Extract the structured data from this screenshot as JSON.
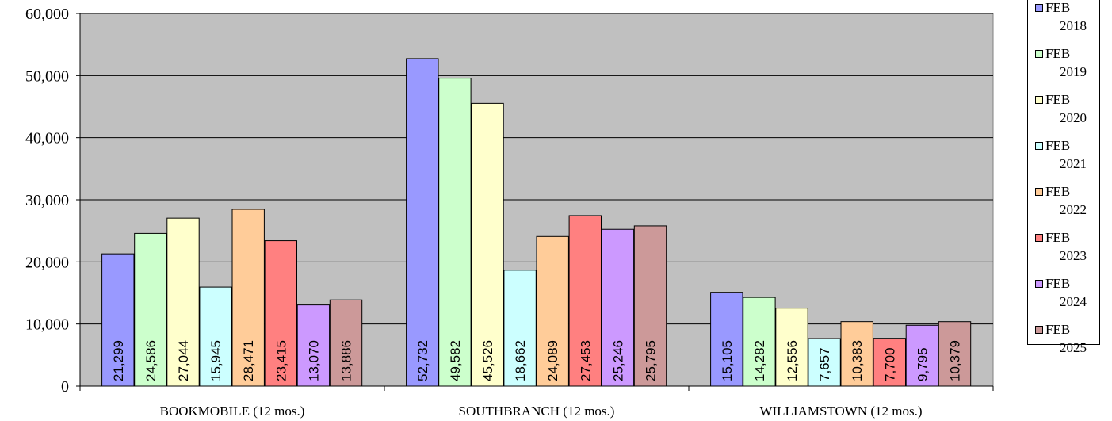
{
  "chart_data": {
    "type": "bar",
    "categories": [
      "BOOKMOBILE (12 mos.)",
      "SOUTHBRANCH (12 mos.)",
      "WILLIAMSTOWN (12 mos.)"
    ],
    "ylim": [
      0,
      60000
    ],
    "yticks": [
      "0",
      "10,000",
      "20,000",
      "30,000",
      "40,000",
      "50,000",
      "60,000"
    ],
    "grid": true,
    "legend_position": "right",
    "series": [
      {
        "name_line1": "FEB",
        "name_line2": "2018",
        "color": "#9999ff",
        "values": [
          21299,
          52732,
          15105
        ],
        "labels": [
          "21,299",
          "52,732",
          "15,105"
        ]
      },
      {
        "name_line1": "FEB",
        "name_line2": "2019",
        "color": "#ccffcc",
        "values": [
          24586,
          49582,
          14282
        ],
        "labels": [
          "24,586",
          "49,582",
          "14,282"
        ]
      },
      {
        "name_line1": "FEB",
        "name_line2": "2020",
        "color": "#ffffcc",
        "values": [
          27044,
          45526,
          12556
        ],
        "labels": [
          "27,044",
          "45,526",
          "12,556"
        ]
      },
      {
        "name_line1": "FEB",
        "name_line2": "2021",
        "color": "#ccffff",
        "values": [
          15945,
          18662,
          7657
        ],
        "labels": [
          "15,945",
          "18,662",
          "7,657"
        ]
      },
      {
        "name_line1": "FEB",
        "name_line2": "2022",
        "color": "#ffcc99",
        "values": [
          28471,
          24089,
          10383
        ],
        "labels": [
          "28,471",
          "24,089",
          "10,383"
        ]
      },
      {
        "name_line1": "FEB",
        "name_line2": "2023",
        "color": "#ff8080",
        "values": [
          23415,
          27453,
          7700
        ],
        "labels": [
          "23,415",
          "27,453",
          "7,700"
        ]
      },
      {
        "name_line1": "FEB",
        "name_line2": "2024",
        "color": "#cc99ff",
        "values": [
          13070,
          25246,
          9795
        ],
        "labels": [
          "13,070",
          "25,246",
          "9,795"
        ]
      },
      {
        "name_line1": "FEB",
        "name_line2": "2025",
        "color": "#cc9999",
        "values": [
          13886,
          25795,
          10379
        ],
        "labels": [
          "13,886",
          "25,795",
          "10,379"
        ]
      }
    ]
  }
}
